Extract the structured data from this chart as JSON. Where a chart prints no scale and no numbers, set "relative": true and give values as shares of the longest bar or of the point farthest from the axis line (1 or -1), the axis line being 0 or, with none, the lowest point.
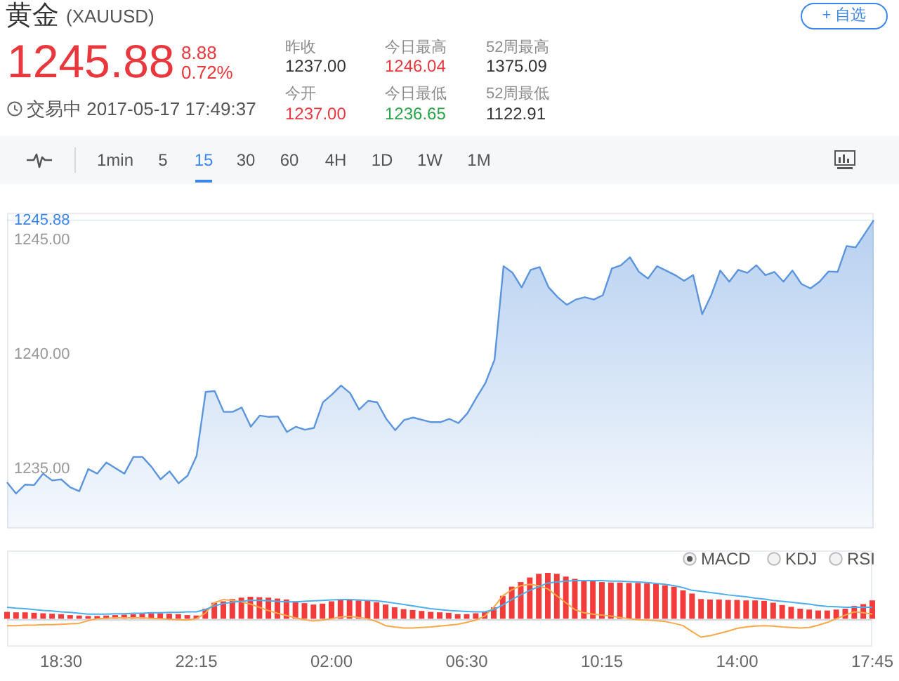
{
  "chart_data": [
    {
      "type": "other",
      "title": "黄金",
      "subtitle": "(XAUUSD)",
      "annotations": [
        "1245.88",
        "8.88",
        "0.72%",
        "交易中 2017-05-17 17:49:37",
        "昨收",
        "1237.00",
        "今日最高",
        "1246.04",
        "52周最高",
        "1375.09",
        "今开",
        "1237.00",
        "今日最低",
        "1236.65",
        "52周最低",
        "1122.91",
        "+ 自选",
        "1min",
        "5",
        "15",
        "30",
        "60",
        "4H",
        "1D",
        "1W",
        "1M"
      ]
    },
    {
      "type": "area",
      "categories": [
        null,
        null,
        null,
        null,
        null,
        null,
        null,
        null,
        null,
        null,
        null,
        null,
        null,
        null,
        null,
        null,
        null,
        null,
        null,
        null,
        null,
        null,
        null,
        null,
        null,
        null,
        null,
        null,
        null,
        null,
        null,
        null,
        null,
        null,
        null,
        null,
        null,
        null,
        null,
        null,
        null,
        null,
        null,
        null,
        null,
        null,
        null,
        null,
        null,
        null,
        null,
        null,
        null,
        null,
        null,
        null,
        null,
        null,
        null,
        null,
        null,
        null,
        null,
        null,
        null,
        null,
        null,
        null,
        null,
        null,
        null,
        null,
        null,
        null,
        null,
        null,
        null,
        null,
        null,
        null,
        null,
        null,
        null,
        null,
        null,
        null,
        null,
        null,
        null,
        null,
        null,
        null,
        null,
        null,
        null,
        null,
        null
      ],
      "series": [
        {
          "color": "#5b95dd",
          "values": [
            1234.42,
            1233.93,
            1234.32,
            1234.3,
            1234.8,
            1234.5,
            1234.55,
            1234.2,
            1234.03,
            1235.0,
            1234.8,
            1235.29,
            1235.04,
            1234.8,
            1235.53,
            1235.53,
            1235.1,
            1234.55,
            1234.9,
            1234.38,
            1234.71,
            1235.58,
            1238.37,
            1238.41,
            1237.5,
            1237.5,
            1237.69,
            1236.85,
            1237.34,
            1237.28,
            1237.3,
            1236.62,
            1236.85,
            1236.72,
            1236.8,
            1237.92,
            1238.26,
            1238.65,
            1238.32,
            1237.6,
            1237.98,
            1237.92,
            1237.2,
            1236.7,
            1237.15,
            1237.25,
            1237.15,
            1237.05,
            1237.05,
            1237.19,
            1237.01,
            1237.44,
            1238.12,
            1238.77,
            1239.78,
            1243.87,
            1243.58,
            1242.94,
            1243.71,
            1243.83,
            1242.94,
            1242.51,
            1242.18,
            1242.41,
            1242.51,
            1242.41,
            1242.6,
            1243.77,
            1243.91,
            1244.26,
            1243.62,
            1243.33,
            1243.87,
            1243.68,
            1243.48,
            1243.23,
            1243.48,
            1241.77,
            1242.6,
            1243.68,
            1243.19,
            1243.71,
            1243.58,
            1243.91,
            1243.48,
            1243.62,
            1243.19,
            1243.68,
            1243.09,
            1242.9,
            1243.19,
            1243.64,
            1243.62,
            1244.75,
            1244.69,
            1245.28,
            1245.88
          ]
        }
      ],
      "ylim": [
        1232.4,
        1246.2
      ],
      "yticks": [
        {
          "value": 1235,
          "label": "1235.00"
        },
        {
          "value": 1240,
          "label": "1240.00"
        },
        {
          "value": 1245,
          "label": "1245.00"
        }
      ],
      "ref_lines": [
        {
          "axis": "y",
          "value": 1245.88,
          "label": "1245.88",
          "color": "#3b86e8"
        }
      ],
      "tick_labels": "y"
    },
    {
      "type": "bar",
      "relative": true,
      "categories": [
        null,
        null,
        null,
        null,
        null,
        null,
        "18:30",
        null,
        null,
        null,
        null,
        null,
        null,
        null,
        null,
        null,
        null,
        null,
        null,
        null,
        null,
        "22:15",
        null,
        null,
        null,
        null,
        null,
        null,
        null,
        null,
        null,
        null,
        null,
        null,
        null,
        null,
        "02:00",
        null,
        null,
        null,
        null,
        null,
        null,
        null,
        null,
        null,
        null,
        null,
        null,
        null,
        null,
        "06:30",
        null,
        null,
        null,
        null,
        null,
        null,
        null,
        null,
        null,
        null,
        null,
        null,
        null,
        null,
        "10:15",
        null,
        null,
        null,
        null,
        null,
        null,
        null,
        null,
        null,
        null,
        null,
        null,
        null,
        null,
        "14:00",
        null,
        null,
        null,
        null,
        null,
        null,
        null,
        null,
        null,
        null,
        null,
        null,
        null,
        null,
        "17:45"
      ],
      "series": [
        {
          "type": "bar",
          "color": "#f23b3b",
          "values": [
            0.15,
            0.14,
            0.14,
            0.13,
            0.12,
            0.11,
            0.1,
            0.08,
            0.07,
            0.06,
            0.06,
            0.07,
            0.08,
            0.09,
            0.1,
            0.11,
            0.12,
            0.12,
            0.11,
            0.1,
            0.08,
            0.07,
            0.22,
            0.35,
            0.38,
            0.43,
            0.46,
            0.48,
            0.47,
            0.46,
            0.44,
            0.42,
            0.38,
            0.34,
            0.31,
            0.33,
            0.38,
            0.41,
            0.41,
            0.4,
            0.39,
            0.36,
            0.31,
            0.25,
            0.21,
            0.19,
            0.17,
            0.15,
            0.14,
            0.13,
            0.1,
            0.1,
            0.12,
            0.15,
            0.25,
            0.5,
            0.7,
            0.8,
            0.9,
            0.98,
            1,
            0.98,
            0.92,
            0.87,
            0.84,
            0.82,
            0.8,
            0.79,
            0.79,
            0.78,
            0.78,
            0.77,
            0.76,
            0.73,
            0.7,
            0.62,
            0.55,
            0.43,
            0.42,
            0.42,
            0.41,
            0.41,
            0.4,
            0.4,
            0.39,
            0.35,
            0.3,
            0.26,
            0.22,
            0.2,
            0.18,
            0.18,
            0.2,
            0.22,
            0.28,
            0.32,
            0.4
          ]
        },
        {
          "type": "line",
          "color": "#4eaeea",
          "values": [
            0.25,
            0.23,
            0.22,
            0.2,
            0.18,
            0.17,
            0.15,
            0.14,
            0.12,
            0.1,
            0.1,
            0.1,
            0.11,
            0.11,
            0.12,
            0.12,
            0.13,
            0.13,
            0.14,
            0.14,
            0.15,
            0.15,
            0.2,
            0.28,
            0.33,
            0.36,
            0.38,
            0.4,
            0.4,
            0.39,
            0.38,
            0.37,
            0.37,
            0.38,
            0.39,
            0.4,
            0.41,
            0.42,
            0.42,
            0.41,
            0.4,
            0.39,
            0.37,
            0.34,
            0.31,
            0.28,
            0.25,
            0.22,
            0.2,
            0.18,
            0.17,
            0.16,
            0.15,
            0.15,
            0.2,
            0.3,
            0.42,
            0.52,
            0.62,
            0.7,
            0.78,
            0.8,
            0.82,
            0.83,
            0.83,
            0.83,
            0.83,
            0.82,
            0.82,
            0.81,
            0.8,
            0.79,
            0.77,
            0.75,
            0.72,
            0.68,
            0.62,
            0.6,
            0.57,
            0.55,
            0.52,
            0.5,
            0.48,
            0.45,
            0.43,
            0.4,
            0.38,
            0.36,
            0.34,
            0.32,
            0.29,
            0.27,
            0.26,
            0.25,
            0.25,
            0.25,
            0.25
          ]
        },
        {
          "type": "line",
          "color": "#f7a84a",
          "values": [
            -0.15,
            -0.15,
            -0.14,
            -0.14,
            -0.13,
            -0.13,
            -0.12,
            -0.11,
            -0.1,
            -0.04,
            0,
            0.01,
            0.02,
            0.02,
            0.02,
            0.02,
            0.01,
            0,
            -0.01,
            -0.02,
            -0.03,
            0,
            0.12,
            0.35,
            0.42,
            0.4,
            0.37,
            0.32,
            0.25,
            0.18,
            0.12,
            0.07,
            0.02,
            -0.02,
            -0.05,
            -0.03,
            0,
            0.04,
            0.05,
            0.03,
            0,
            -0.06,
            -0.15,
            -0.18,
            -0.2,
            -0.2,
            -0.19,
            -0.18,
            -0.16,
            -0.14,
            -0.12,
            -0.08,
            -0.03,
            0.06,
            0.25,
            0.5,
            0.63,
            0.72,
            0.75,
            0.72,
            0.65,
            0.5,
            0.35,
            0.2,
            0.13,
            0.1,
            0.08,
            0.06,
            0.03,
            0,
            -0.02,
            -0.03,
            -0.04,
            -0.06,
            -0.1,
            -0.15,
            -0.28,
            -0.4,
            -0.37,
            -0.32,
            -0.27,
            -0.21,
            -0.18,
            -0.16,
            -0.15,
            -0.16,
            -0.18,
            -0.19,
            -0.2,
            -0.19,
            -0.14,
            -0.08,
            0,
            0.08,
            0.15,
            0.13,
            0.1
          ]
        }
      ],
      "tick_labels": "x",
      "annotations": [
        "MACD",
        "KDJ",
        "RSI"
      ]
    }
  ]
}
